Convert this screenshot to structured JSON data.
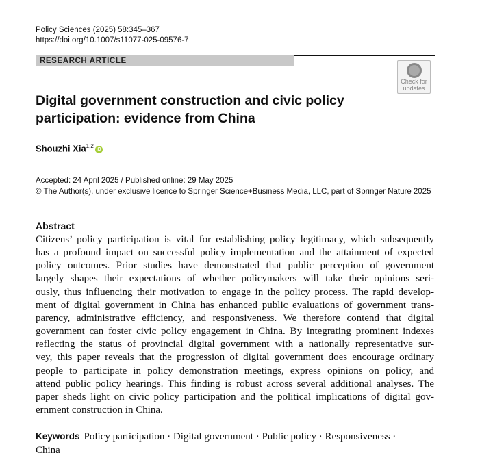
{
  "header": {
    "journal_citation": "Policy Sciences (2025) 58:345–367",
    "doi": "https://doi.org/10.1007/s11077-025-09576-7",
    "article_type": "RESEARCH ARTICLE",
    "check_updates_line1": "Check for",
    "check_updates_line2": "updates"
  },
  "title": {
    "line1": "Digital government construction and civic policy",
    "line2": "participation: evidence from China"
  },
  "author": {
    "name": "Shouzhi Xia",
    "affiliations": "1,2",
    "orcid_icon": "orcid-icon"
  },
  "dates": {
    "accepted_published": "Accepted: 24 April 2025 / Published online: 29 May 2025",
    "copyright": "© The Author(s), under exclusive licence to Springer Science+Business Media, LLC, part of Springer Nature 2025"
  },
  "abstract": {
    "heading": "Abstract",
    "lines": [
      "Citizens’ policy participation is vital for establishing policy legitimacy, which subsequently",
      "has a profound impact on successful policy implementation and the attainment of expected",
      "policy outcomes. Prior studies have demonstrated that public perception of government",
      "largely shapes their expectations of whether policymakers will take their opinions seri-",
      "ously, thus influencing their motivation to engage in the policy process. The rapid develop-",
      "ment of digital government in China has enhanced public evaluations of government trans-",
      "parency, administrative efficiency, and responsiveness. We therefore contend that digital",
      "government can foster civic policy engagement in China. By integrating prominent indexes",
      "reflecting the status of provincial digital government with a nationally representative sur-",
      "vey, this paper reveals that the progression of digital government does encourage ordinary",
      "people to participate in policy demonstration meetings, express opinions on policy, and",
      "attend public policy hearings. This finding is robust across several additional analyses. The",
      "paper sheds light on civic policy participation and the political implications of digital gov-",
      "ernment construction in China."
    ]
  },
  "keywords": {
    "label": "Keywords",
    "line1": "Policy participation · Digital government · Public policy · Responsiveness ·",
    "line2": "China"
  }
}
